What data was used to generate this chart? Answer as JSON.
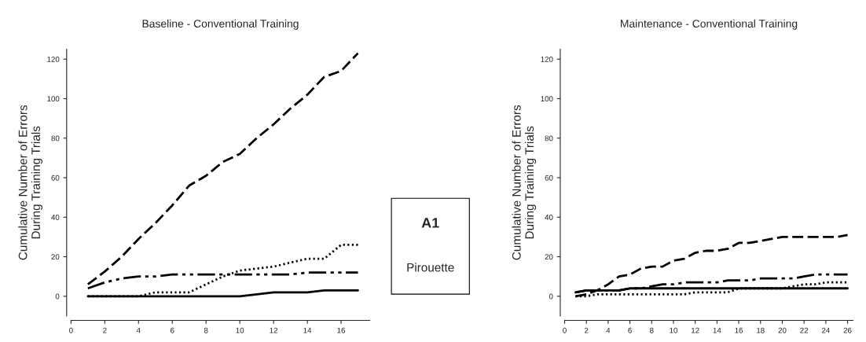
{
  "chart_data": [
    {
      "type": "line",
      "title": "Baseline - Conventional Training",
      "ylabel": "Cumulative Number of Errors\nDuring Training Trials",
      "annotations": [
        "A1",
        "Pirouette"
      ],
      "x": [
        1,
        2,
        3,
        4,
        5,
        6,
        7,
        8,
        9,
        10,
        11,
        12,
        13,
        14,
        15,
        16,
        17
      ],
      "series": [
        {
          "color": "#000000",
          "line_style": "dashed",
          "values": [
            6,
            12.5,
            20,
            29,
            37,
            46,
            56,
            61,
            68,
            72,
            80,
            87,
            95,
            102,
            111,
            114,
            123
          ]
        },
        {
          "color": "#000000",
          "line_style": "dashdot",
          "values": [
            4,
            7,
            9,
            10,
            10,
            11,
            11,
            11,
            11,
            11,
            11,
            11,
            11,
            12,
            12,
            12,
            12
          ]
        },
        {
          "color": "#000000",
          "line_style": "dotted",
          "values": [
            0,
            0,
            0,
            0,
            2,
            2,
            2,
            6,
            10,
            13,
            14,
            15,
            17,
            19,
            19,
            26,
            26
          ]
        },
        {
          "color": "#000000",
          "line_style": "solid",
          "values": [
            0,
            0,
            0,
            0,
            0,
            0,
            0,
            0,
            0,
            0,
            1,
            2,
            2,
            2,
            3,
            3,
            3
          ]
        }
      ],
      "xlim": [
        0,
        17.7
      ],
      "ylim": [
        -10,
        125
      ],
      "xticks": [
        0,
        2,
        4,
        6,
        8,
        10,
        12,
        14,
        16
      ],
      "yticks": [
        0,
        20,
        40,
        60,
        80,
        100,
        120
      ],
      "grid": false,
      "legend": false
    },
    {
      "type": "line",
      "title": "Maintenance - Conventional Training",
      "ylabel": "Cumulative Number of Errors\nDuring Training Trials",
      "x": [
        1,
        2,
        3,
        4,
        5,
        6,
        7,
        8,
        9,
        10,
        11,
        12,
        13,
        14,
        15,
        16,
        17,
        18,
        19,
        20,
        21,
        22,
        23,
        24,
        25,
        26
      ],
      "series": [
        {
          "color": "#000000",
          "line_style": "dashed",
          "values": [
            0,
            1,
            3,
            6,
            10,
            11,
            14,
            15,
            15,
            18,
            19,
            22,
            23,
            23,
            24,
            27,
            27,
            28,
            29,
            30,
            30,
            30,
            30,
            30,
            30,
            31
          ]
        },
        {
          "color": "#000000",
          "line_style": "dashdot",
          "values": [
            2,
            3,
            3,
            3,
            3,
            4,
            4,
            5,
            6,
            6,
            7,
            7,
            7,
            7,
            8,
            8,
            8,
            9,
            9,
            9,
            9,
            10,
            11,
            11,
            11,
            11
          ]
        },
        {
          "color": "#000000",
          "line_style": "dotted",
          "values": [
            0,
            0,
            1,
            1,
            1,
            1,
            1,
            1,
            1,
            1,
            1,
            2,
            2,
            2,
            2,
            4,
            4,
            4,
            4,
            4,
            5,
            6,
            6,
            7,
            7,
            7
          ]
        },
        {
          "color": "#000000",
          "line_style": "solid",
          "values": [
            2,
            3,
            3,
            3,
            3,
            4,
            4,
            4,
            4,
            4,
            4,
            4,
            4,
            4,
            4,
            4,
            4,
            4,
            4,
            4,
            4,
            4,
            4,
            4,
            4,
            4
          ]
        }
      ],
      "xlim": [
        0,
        26.5
      ],
      "ylim": [
        -10,
        125
      ],
      "xticks": [
        0,
        2,
        4,
        6,
        8,
        10,
        12,
        14,
        16,
        18,
        20,
        22,
        24,
        26
      ],
      "yticks": [
        0,
        20,
        40,
        60,
        80,
        100,
        120
      ],
      "grid": false,
      "legend": false
    }
  ]
}
